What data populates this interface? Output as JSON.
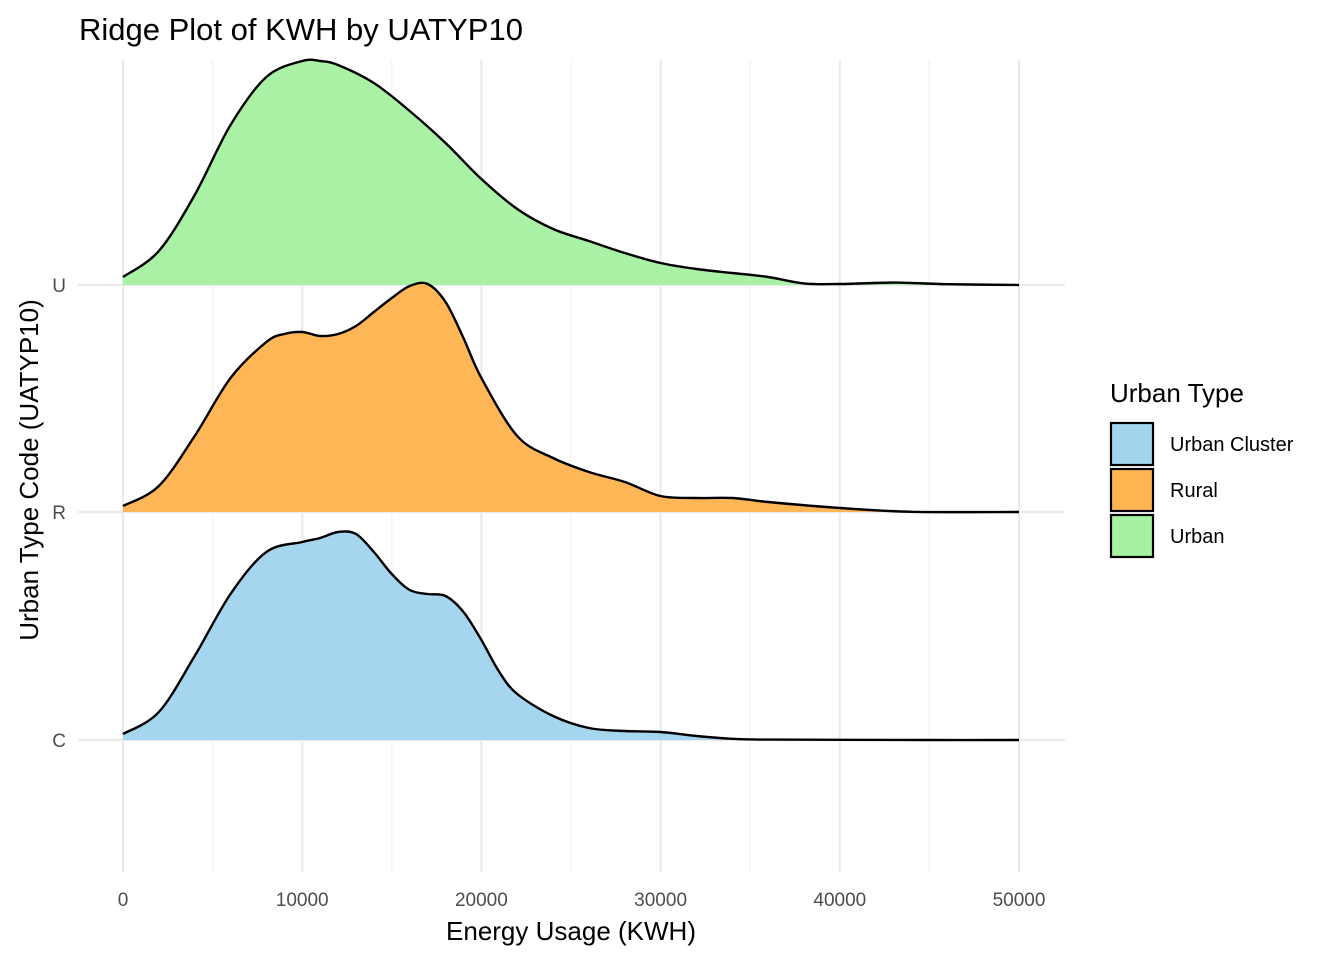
{
  "chart_data": {
    "type": "area",
    "subtype": "ridgeline-density",
    "title": "Ridge Plot of KWH by UATYP10",
    "xlabel": "Energy Usage (KWH)",
    "ylabel": "Urban Type Code (UATYP10)",
    "xlim": [
      0,
      50000
    ],
    "x_ticks": [
      "0",
      "10000",
      "20000",
      "30000",
      "40000",
      "50000"
    ],
    "y_categories": [
      "C",
      "R",
      "U"
    ],
    "grid": true,
    "legend": {
      "title": "Urban Type",
      "placement": "right",
      "items": [
        {
          "label": "Urban Cluster",
          "color": "#a3d5ee"
        },
        {
          "label": "Rural",
          "color": "#ffb452"
        },
        {
          "label": "Urban",
          "color": "#a6f1a1"
        }
      ]
    },
    "series": [
      {
        "name": "Urban Cluster",
        "category": "C",
        "color": "#a3d5ee",
        "x": [
          0,
          2000,
          4000,
          6000,
          8000,
          10000,
          11000,
          12000,
          13000,
          14000,
          15000,
          16000,
          17000,
          18000,
          19000,
          20000,
          21000,
          22000,
          24000,
          26000,
          28000,
          30000,
          32000,
          34000,
          36000,
          40000,
          45000,
          50000
        ],
        "density": [
          0.03,
          0.14,
          0.42,
          0.73,
          0.94,
          0.99,
          1.01,
          1.04,
          1.03,
          0.94,
          0.83,
          0.75,
          0.73,
          0.72,
          0.64,
          0.5,
          0.34,
          0.23,
          0.12,
          0.06,
          0.045,
          0.04,
          0.02,
          0.006,
          0.002,
          0.001,
          0.0,
          0.0
        ]
      },
      {
        "name": "Rural",
        "category": "R",
        "color": "#ffb452",
        "x": [
          0,
          2000,
          4000,
          6000,
          8000,
          9000,
          10000,
          11000,
          12000,
          13000,
          14000,
          15000,
          16000,
          17000,
          18000,
          19000,
          20000,
          22000,
          24000,
          26000,
          28000,
          30000,
          32000,
          34000,
          36000,
          40000,
          44000,
          50000
        ],
        "density": [
          0.03,
          0.13,
          0.38,
          0.67,
          0.85,
          0.89,
          0.9,
          0.88,
          0.89,
          0.93,
          1.0,
          1.07,
          1.13,
          1.14,
          1.05,
          0.87,
          0.67,
          0.38,
          0.27,
          0.2,
          0.15,
          0.08,
          0.07,
          0.07,
          0.05,
          0.02,
          0.001,
          0.0
        ]
      },
      {
        "name": "Urban",
        "category": "U",
        "color": "#a6f1a1",
        "x": [
          0,
          2000,
          4000,
          6000,
          8000,
          10000,
          11000,
          12000,
          14000,
          16000,
          18000,
          20000,
          22000,
          24000,
          26000,
          28000,
          30000,
          32000,
          34000,
          36000,
          38000,
          40000,
          43000,
          46000,
          50000
        ],
        "density": [
          0.04,
          0.17,
          0.45,
          0.8,
          1.04,
          1.12,
          1.12,
          1.1,
          1.01,
          0.87,
          0.71,
          0.53,
          0.38,
          0.28,
          0.22,
          0.16,
          0.11,
          0.08,
          0.06,
          0.04,
          0.008,
          0.005,
          0.012,
          0.004,
          0.0
        ]
      }
    ]
  }
}
